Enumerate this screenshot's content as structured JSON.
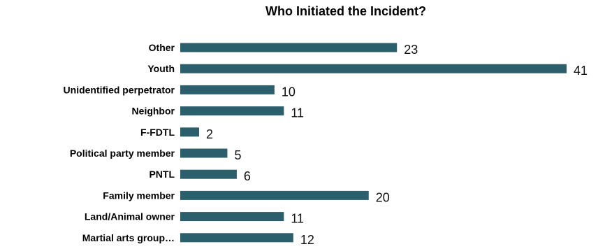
{
  "chart_data": {
    "type": "bar",
    "orientation": "horizontal",
    "title": "Who Initiated the Incident?",
    "categories": [
      "Other",
      "Youth",
      "Unidentified perpetrator",
      "Neighbor",
      "F-FDTL",
      "Political party member",
      "PNTL",
      "Family member",
      "Land/Animal owner",
      "Martial arts group…"
    ],
    "values": [
      23,
      41,
      10,
      11,
      2,
      5,
      6,
      20,
      11,
      12
    ],
    "xlabel": "",
    "ylabel": "",
    "xlim": [
      0,
      41
    ],
    "grid": false,
    "data_labels": true,
    "bar_color": "#2b5f6b"
  }
}
